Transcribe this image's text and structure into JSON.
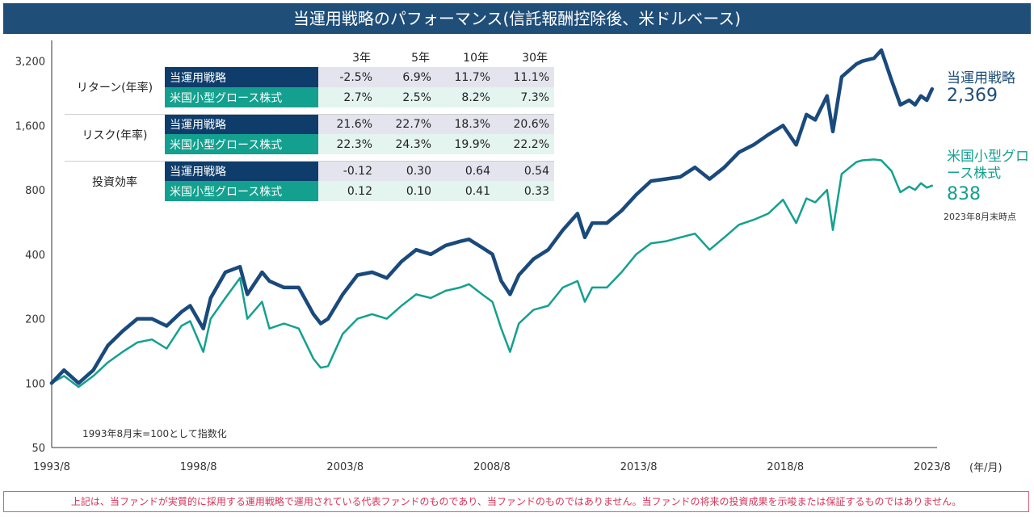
{
  "title": "当運用戦略のパフォーマンス(信託報酬控除後、米ドルベース)",
  "table": {
    "headers": [
      "3年",
      "5年",
      "10年",
      "30年"
    ],
    "groups": [
      {
        "name": "リターン(年率)",
        "rows": [
          {
            "label": "当運用戦略",
            "values": [
              "-2.5%",
              "6.9%",
              "11.7%",
              "11.1%"
            ]
          },
          {
            "label": "米国小型グロース株式",
            "values": [
              "2.7%",
              "2.5%",
              "8.2%",
              "7.3%"
            ]
          }
        ]
      },
      {
        "name": "リスク(年率)",
        "rows": [
          {
            "label": "当運用戦略",
            "values": [
              "21.6%",
              "22.7%",
              "18.3%",
              "20.6%"
            ]
          },
          {
            "label": "米国小型グロース株式",
            "values": [
              "22.3%",
              "24.3%",
              "19.9%",
              "22.2%"
            ]
          }
        ]
      },
      {
        "name": "投資効率",
        "rows": [
          {
            "label": "当運用戦略",
            "values": [
              "-0.12",
              "0.30",
              "0.64",
              "0.54"
            ]
          },
          {
            "label": "米国小型グロース株式",
            "values": [
              "0.12",
              "0.10",
              "0.41",
              "0.33"
            ]
          }
        ]
      }
    ]
  },
  "end_labels": {
    "strategy_name": "当運用戦略",
    "strategy_value": "2,369",
    "benchmark_name": "米国小型グロース株式",
    "benchmark_value": "838",
    "note": "2023年8月末時点"
  },
  "base_note": "1993年8月末=100として指数化",
  "x_unit": "(年/月)",
  "disclaimer": "上記は、当ファンドが実質的に採用する運用戦略で運用されている代表ファンドのものであり、当ファンドのものではありません。当ファンドの将来の投資成果を示唆または保証するものではありません。",
  "colors": {
    "strategy": "#1a4a7c",
    "benchmark": "#14a08f",
    "banner": "#1f4e79"
  },
  "chart_data": {
    "type": "line",
    "y_scale": "log2",
    "ylim": [
      50,
      4000
    ],
    "yticks": [
      50,
      100,
      200,
      400,
      800,
      1600,
      3200
    ],
    "ytick_labels": [
      "50",
      "100",
      "200",
      "400",
      "800",
      "1,600",
      "3,200"
    ],
    "xlim": [
      1993.583,
      2023.75
    ],
    "xticks": [
      1993.583,
      1998.583,
      2003.583,
      2008.583,
      2013.583,
      2018.583,
      2023.583
    ],
    "xtick_labels": [
      "1993/8",
      "1998/8",
      "2003/8",
      "2008/8",
      "2013/8",
      "2018/8",
      "2023/8"
    ],
    "series": [
      {
        "name": "当運用戦略",
        "x": [
          1993.58,
          1994.0,
          1994.5,
          1995.0,
          1995.5,
          1996.0,
          1996.5,
          1997.0,
          1997.5,
          1998.0,
          1998.3,
          1998.75,
          1999.0,
          1999.5,
          2000.0,
          2000.25,
          2000.75,
          2001.0,
          2001.5,
          2002.0,
          2002.5,
          2002.75,
          2003.0,
          2003.5,
          2004.0,
          2004.5,
          2005.0,
          2005.5,
          2006.0,
          2006.5,
          2007.0,
          2007.5,
          2007.8,
          2008.25,
          2008.6,
          2008.9,
          2009.2,
          2009.5,
          2010.0,
          2010.5,
          2011.0,
          2011.5,
          2011.75,
          2012.0,
          2012.5,
          2013.0,
          2013.5,
          2014.0,
          2014.5,
          2015.0,
          2015.5,
          2016.0,
          2016.5,
          2017.0,
          2017.5,
          2018.0,
          2018.5,
          2018.95,
          2019.3,
          2019.6,
          2020.0,
          2020.2,
          2020.5,
          2021.0,
          2021.2,
          2021.6,
          2021.85,
          2022.2,
          2022.5,
          2022.8,
          2023.0,
          2023.2,
          2023.4,
          2023.58
        ],
        "values": [
          100,
          115,
          100,
          115,
          150,
          175,
          200,
          200,
          185,
          215,
          230,
          180,
          250,
          330,
          350,
          260,
          330,
          300,
          280,
          280,
          210,
          190,
          200,
          260,
          320,
          330,
          310,
          370,
          420,
          400,
          440,
          460,
          470,
          430,
          400,
          300,
          260,
          320,
          380,
          420,
          520,
          620,
          480,
          560,
          560,
          640,
          760,
          880,
          900,
          920,
          1020,
          900,
          1020,
          1200,
          1300,
          1450,
          1600,
          1300,
          1800,
          1700,
          2200,
          1500,
          2700,
          3100,
          3200,
          3300,
          3600,
          2600,
          2000,
          2100,
          2000,
          2200,
          2100,
          2369
        ]
      },
      {
        "name": "米国小型グロース株式",
        "x": [
          1993.58,
          1994.0,
          1994.5,
          1995.0,
          1995.5,
          1996.0,
          1996.5,
          1997.0,
          1997.5,
          1998.0,
          1998.3,
          1998.75,
          1999.0,
          1999.5,
          2000.0,
          2000.25,
          2000.75,
          2001.0,
          2001.5,
          2002.0,
          2002.5,
          2002.75,
          2003.0,
          2003.5,
          2004.0,
          2004.5,
          2005.0,
          2005.5,
          2006.0,
          2006.5,
          2007.0,
          2007.5,
          2007.8,
          2008.25,
          2008.6,
          2008.9,
          2009.2,
          2009.5,
          2010.0,
          2010.5,
          2011.0,
          2011.5,
          2011.75,
          2012.0,
          2012.5,
          2013.0,
          2013.5,
          2014.0,
          2014.5,
          2015.0,
          2015.5,
          2016.0,
          2016.5,
          2017.0,
          2017.5,
          2018.0,
          2018.5,
          2018.95,
          2019.3,
          2019.6,
          2020.0,
          2020.2,
          2020.5,
          2021.0,
          2021.2,
          2021.6,
          2021.85,
          2022.2,
          2022.5,
          2022.8,
          2023.0,
          2023.2,
          2023.4,
          2023.58
        ],
        "values": [
          100,
          108,
          96,
          108,
          125,
          140,
          155,
          160,
          145,
          185,
          195,
          140,
          200,
          250,
          310,
          200,
          240,
          180,
          190,
          180,
          130,
          118,
          120,
          170,
          200,
          210,
          200,
          230,
          260,
          250,
          270,
          280,
          290,
          260,
          240,
          180,
          140,
          190,
          220,
          230,
          280,
          300,
          240,
          280,
          280,
          330,
          400,
          450,
          460,
          480,
          500,
          420,
          480,
          550,
          580,
          620,
          720,
          560,
          730,
          700,
          800,
          520,
          950,
          1080,
          1100,
          1110,
          1100,
          980,
          780,
          830,
          800,
          860,
          820,
          838
        ]
      }
    ]
  }
}
